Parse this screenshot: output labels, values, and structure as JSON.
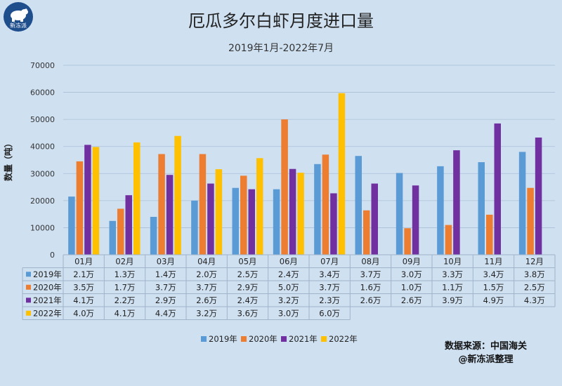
{
  "branding": {
    "logo_text": "新冻派",
    "logo_icon": "polar-bear-icon"
  },
  "source": {
    "line1": "数据来源：中国海关",
    "line2": "@新冻派整理"
  },
  "chart_data": {
    "type": "bar",
    "title": "厄瓜多尔白虾月度进口量",
    "subtitle": "2019年1月-2022年7月",
    "ylabel": "数量（吨）",
    "xlabel": "",
    "ylim": [
      0,
      70000
    ],
    "yticks": [
      0,
      10000,
      20000,
      30000,
      40000,
      50000,
      60000,
      70000
    ],
    "grid": true,
    "legend": "bottom",
    "categories": [
      "01月",
      "02月",
      "03月",
      "04月",
      "05月",
      "06月",
      "07月",
      "08月",
      "09月",
      "10月",
      "11月",
      "12月"
    ],
    "series": [
      {
        "name": "2019年",
        "color": "#5b9bd5",
        "values": [
          21500,
          12500,
          14000,
          20000,
          24700,
          24200,
          33500,
          36500,
          30200,
          32700,
          34200,
          38000
        ],
        "labels": [
          "2.1万",
          "1.3万",
          "1.4万",
          "2.0万",
          "2.5万",
          "2.4万",
          "3.4万",
          "3.7万",
          "3.0万",
          "3.3万",
          "3.4万",
          "3.8万"
        ]
      },
      {
        "name": "2020年",
        "color": "#ed7d31",
        "values": [
          34500,
          17000,
          37200,
          37200,
          29200,
          50000,
          37000,
          16400,
          9800,
          11000,
          14800,
          24700
        ],
        "labels": [
          "3.5万",
          "1.7万",
          "3.7万",
          "3.7万",
          "2.9万",
          "5.0万",
          "3.7万",
          "1.6万",
          "1.0万",
          "1.1万",
          "1.5万",
          "2.5万"
        ]
      },
      {
        "name": "2021年",
        "color": "#7030a0",
        "values": [
          40600,
          22000,
          29500,
          26300,
          24200,
          31700,
          22700,
          26300,
          25600,
          38600,
          48500,
          43300
        ],
        "labels": [
          "4.1万",
          "2.2万",
          "2.9万",
          "2.6万",
          "2.4万",
          "3.2万",
          "2.3万",
          "2.6万",
          "2.6万",
          "3.9万",
          "4.9万",
          "4.3万"
        ]
      },
      {
        "name": "2022年",
        "color": "#ffc000",
        "values": [
          39800,
          41500,
          43900,
          31600,
          35700,
          30300,
          59700,
          null,
          null,
          null,
          null,
          null
        ],
        "labels": [
          "4.0万",
          "4.1万",
          "4.4万",
          "3.2万",
          "3.6万",
          "3.0万",
          "6.0万",
          "",
          "",
          "",
          "",
          ""
        ]
      }
    ]
  }
}
